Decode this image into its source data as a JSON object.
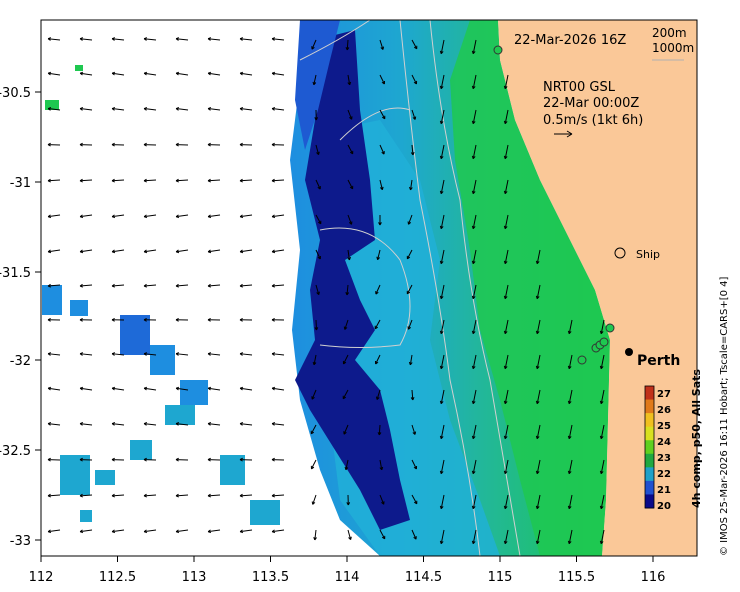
{
  "map": {
    "date_label": "22-Mar-2026 16Z",
    "depth_contours": [
      "200m",
      "1000m"
    ],
    "current_info": [
      "NRT00 GSL",
      "22-Mar 00:00Z",
      "0.5m/s (1kt 6h)"
    ],
    "city": "Perth",
    "ship_label": "Ship",
    "x_ticks": [
      "112",
      "112.5",
      "113",
      "113.5",
      "114",
      "114.5",
      "115",
      "115.5",
      "116"
    ],
    "y_ticks": [
      "-30.5",
      "-31",
      "-31.5",
      "-32",
      "-32.5",
      "-33"
    ],
    "colorbar": {
      "ticks": [
        "27",
        "26",
        "25",
        "24",
        "23",
        "22",
        "21",
        "20"
      ],
      "label": "4h comp, p50, All Sats",
      "colors": [
        "#c0301a",
        "#e07a1a",
        "#f0c020",
        "#d8e020",
        "#5fd020",
        "#20a840",
        "#1fa0c8",
        "#2050d0",
        "#0a0a8a"
      ]
    },
    "credit": "© IMOS 25-Mar-2026 16:11 Hobart; Tscale=CARS+[0 4]",
    "colors": {
      "land": "#fac898",
      "deep_blue": "#0d1a8c",
      "blue": "#1e5ad2",
      "cyan": "#1ea7d0",
      "teal": "#22b78a",
      "green": "#1ec850"
    }
  }
}
